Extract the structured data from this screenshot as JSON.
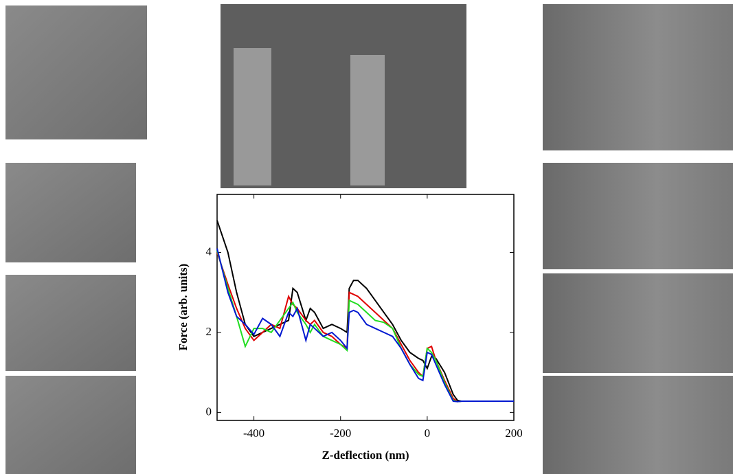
{
  "chart_data": {
    "type": "line",
    "xlabel": "Z-deflection (nm)",
    "ylabel": "Force (arb. units)",
    "x": [
      -485,
      -460,
      -440,
      -420,
      -400,
      -380,
      -360,
      -340,
      -320,
      -310,
      -300,
      -280,
      -270,
      -260,
      -240,
      -220,
      -200,
      -185,
      -180,
      -170,
      -160,
      -140,
      -120,
      -100,
      -80,
      -60,
      -40,
      -20,
      -10,
      0,
      10,
      20,
      40,
      60,
      70,
      80,
      100,
      140,
      200
    ],
    "series": [
      {
        "color": "#000000",
        "values": [
          4.8,
          4.0,
          3.0,
          2.2,
          1.9,
          2.0,
          2.1,
          2.2,
          2.3,
          3.1,
          3.0,
          2.3,
          2.6,
          2.5,
          2.1,
          2.2,
          2.1,
          2.0,
          3.1,
          3.3,
          3.3,
          3.1,
          2.8,
          2.5,
          2.2,
          1.8,
          1.5,
          1.35,
          1.3,
          1.1,
          1.4,
          1.35,
          1.0,
          0.45,
          0.3,
          0.28,
          0.28,
          0.28,
          0.28
        ]
      },
      {
        "color": "#e00000",
        "values": [
          4.0,
          3.2,
          2.6,
          2.1,
          1.8,
          2.0,
          2.2,
          2.1,
          2.9,
          2.7,
          2.6,
          2.3,
          2.2,
          2.3,
          2.0,
          1.9,
          1.7,
          1.6,
          3.0,
          2.95,
          2.9,
          2.7,
          2.5,
          2.3,
          2.1,
          1.7,
          1.3,
          1.0,
          0.9,
          1.6,
          1.65,
          1.3,
          0.8,
          0.35,
          0.27,
          0.28,
          0.28,
          0.28,
          0.28
        ]
      },
      {
        "color": "#22dd22",
        "values": [
          4.05,
          3.1,
          2.4,
          1.65,
          2.1,
          2.1,
          2.0,
          2.3,
          2.6,
          2.75,
          2.5,
          2.2,
          2.0,
          2.2,
          1.9,
          1.8,
          1.7,
          1.55,
          2.8,
          2.75,
          2.7,
          2.5,
          2.3,
          2.25,
          2.1,
          1.6,
          1.2,
          0.95,
          0.9,
          1.6,
          1.5,
          1.3,
          0.75,
          0.3,
          0.27,
          0.28,
          0.28,
          0.28,
          0.28
        ]
      },
      {
        "color": "#0018d0",
        "values": [
          4.1,
          3.0,
          2.4,
          2.2,
          1.95,
          2.35,
          2.2,
          1.9,
          2.5,
          2.4,
          2.6,
          1.8,
          2.2,
          2.1,
          1.9,
          2.0,
          1.8,
          1.6,
          2.5,
          2.55,
          2.5,
          2.2,
          2.1,
          2.0,
          1.9,
          1.6,
          1.2,
          0.85,
          0.8,
          1.5,
          1.45,
          1.2,
          0.7,
          0.28,
          0.27,
          0.28,
          0.28,
          0.28,
          0.28
        ]
      }
    ],
    "xlim": [
      -485,
      200
    ],
    "ylim": [
      -0.2,
      5.45
    ],
    "xticks": [
      -400,
      -200,
      0,
      200
    ],
    "yticks": [
      0,
      2,
      4
    ]
  }
}
